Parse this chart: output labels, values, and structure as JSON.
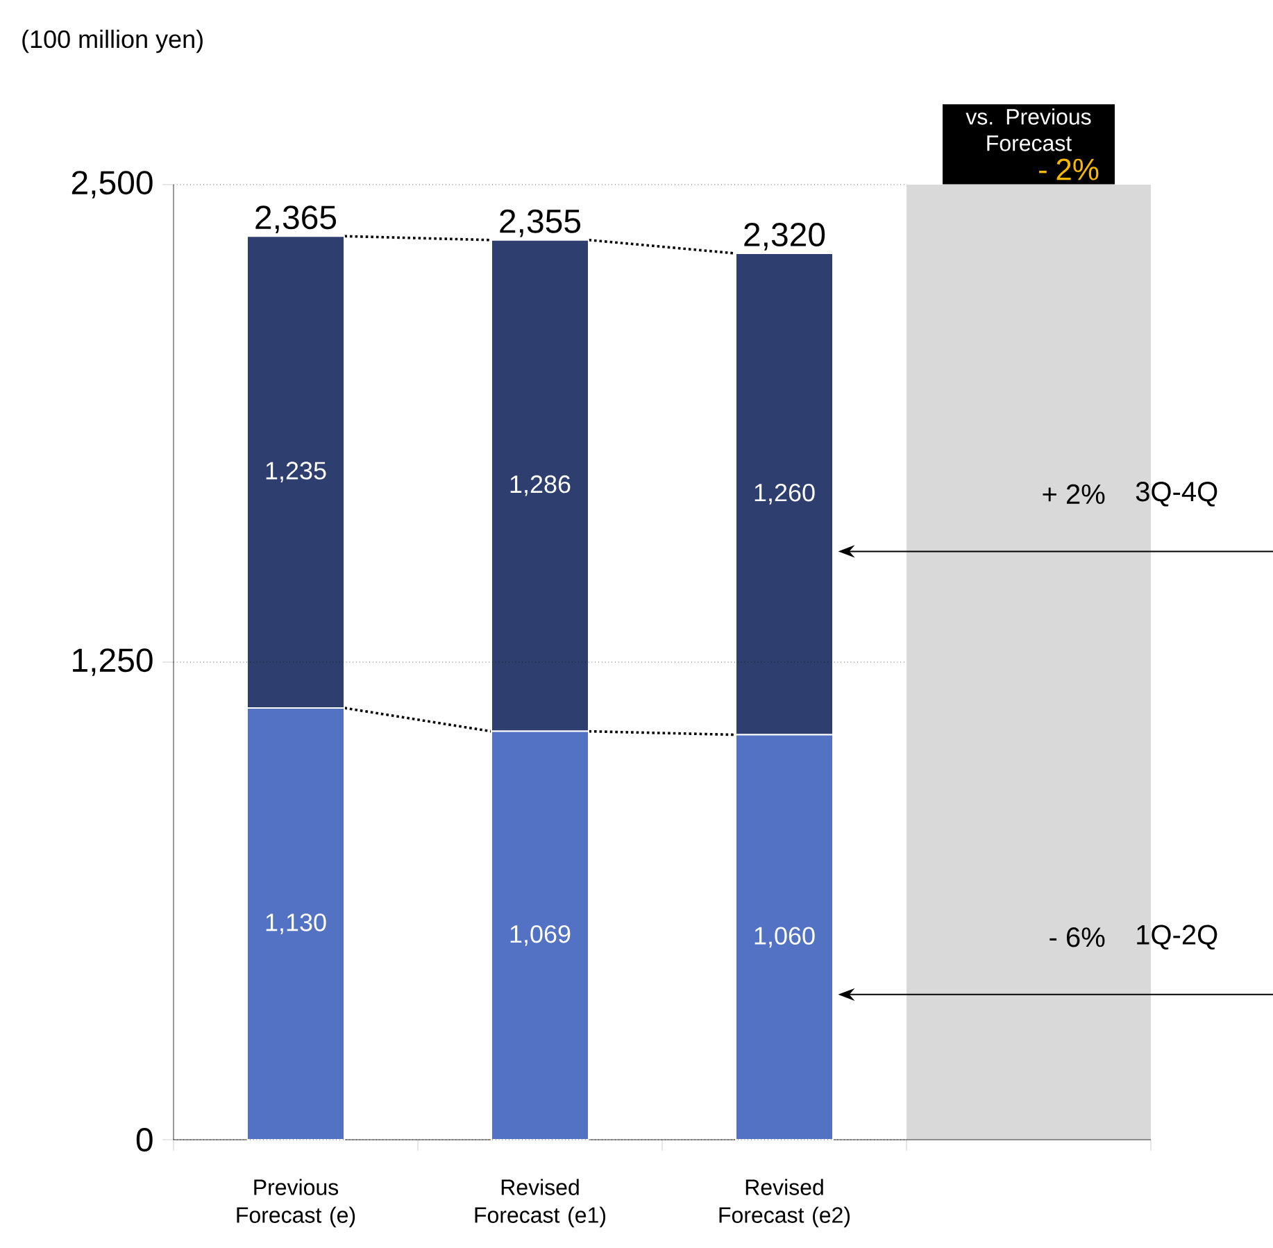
{
  "chart_data": {
    "type": "bar",
    "stacked": true,
    "categories": [
      "Previous Forecast (e)",
      "Revised Forecast (e1)",
      "Revised Forecast (e2)"
    ],
    "ylabel": "(100 million yen)",
    "ylim": [
      0,
      2500
    ],
    "yticks": [
      0,
      {
        "value": 1250,
        "label": "1,250"
      },
      {
        "value": 2500,
        "label": "2,500"
      }
    ],
    "grid": "y",
    "series": [
      {
        "name": "1Q-2Q",
        "color": "#5472c4",
        "values": [
          1130,
          1069,
          1060
        ],
        "value_labels": [
          "1,130",
          "1,069",
          "1,060"
        ]
      },
      {
        "name": "3Q-4Q",
        "color": "#2e3e6e",
        "values": [
          1235,
          1286,
          1260
        ],
        "value_labels": [
          "1,235",
          "1,286",
          "1,260"
        ]
      }
    ],
    "totals": [
      "2,365",
      "2,355",
      "2,320"
    ],
    "annotations": [
      "vs. Previous Forecast",
      "- 2%",
      "+ 2%",
      "- 6%"
    ]
  }
}
